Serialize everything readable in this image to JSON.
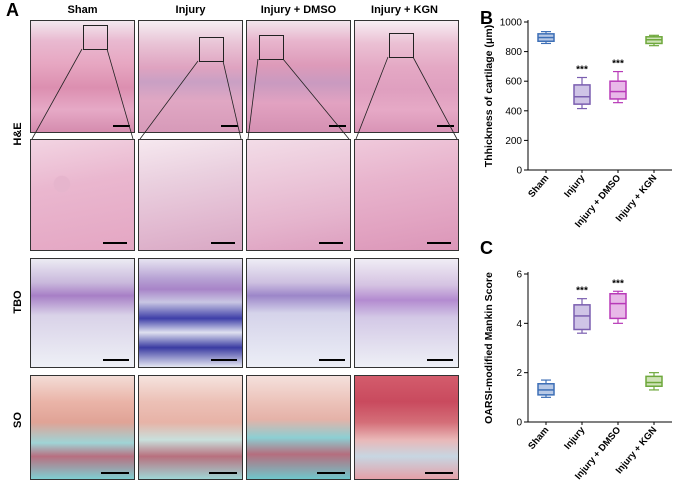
{
  "panel_a": {
    "label": "A",
    "columns": [
      "Sham",
      "Injury",
      "Injury + DMSO",
      "Injury + KGN"
    ],
    "rows": [
      "H&E",
      "TBO",
      "SO"
    ]
  },
  "chart_data": [
    {
      "panel": "B",
      "type": "box",
      "ylabel": "Thhickness of cartilage (μm)",
      "ylim": [
        0,
        1000
      ],
      "yticks": [
        0,
        200,
        400,
        600,
        800,
        1000
      ],
      "categories": [
        "Sham",
        "Injury",
        "Injury + DMSO",
        "Injury + KGN"
      ],
      "colors": [
        "#3d6fb6",
        "#7b5fb0",
        "#b83ab8",
        "#6ea83c"
      ],
      "fills": [
        "#b8c9e6",
        "#cfc4e6",
        "#e8b8e8",
        "#cfe3b8"
      ],
      "boxes": [
        {
          "min": 855,
          "q1": 870,
          "median": 895,
          "q3": 920,
          "max": 935
        },
        {
          "min": 415,
          "q1": 445,
          "median": 495,
          "q3": 575,
          "max": 625
        },
        {
          "min": 455,
          "q1": 480,
          "median": 530,
          "q3": 600,
          "max": 665
        },
        {
          "min": 840,
          "q1": 855,
          "median": 880,
          "q3": 900,
          "max": 910
        }
      ],
      "annotations": [
        "",
        "***",
        "***",
        ""
      ]
    },
    {
      "panel": "C",
      "type": "box",
      "ylabel": "OARSI-modified Mankin Score",
      "ylim": [
        0,
        6
      ],
      "yticks": [
        0,
        2,
        4,
        6
      ],
      "categories": [
        "Sham",
        "Injury",
        "Injury + DMSO",
        "Injury + KGN"
      ],
      "colors": [
        "#3d6fb6",
        "#7b5fb0",
        "#b83ab8",
        "#6ea83c"
      ],
      "fills": [
        "#b8c9e6",
        "#cfc4e6",
        "#e8b8e8",
        "#cfe3b8"
      ],
      "boxes": [
        {
          "min": 1.0,
          "q1": 1.1,
          "median": 1.3,
          "q3": 1.55,
          "max": 1.7
        },
        {
          "min": 3.6,
          "q1": 3.75,
          "median": 4.3,
          "q3": 4.75,
          "max": 5.0
        },
        {
          "min": 4.0,
          "q1": 4.2,
          "median": 4.8,
          "q3": 5.2,
          "max": 5.3
        },
        {
          "min": 1.3,
          "q1": 1.45,
          "median": 1.6,
          "q3": 1.85,
          "max": 2.0
        }
      ],
      "annotations": [
        "",
        "***",
        "***",
        ""
      ]
    }
  ]
}
